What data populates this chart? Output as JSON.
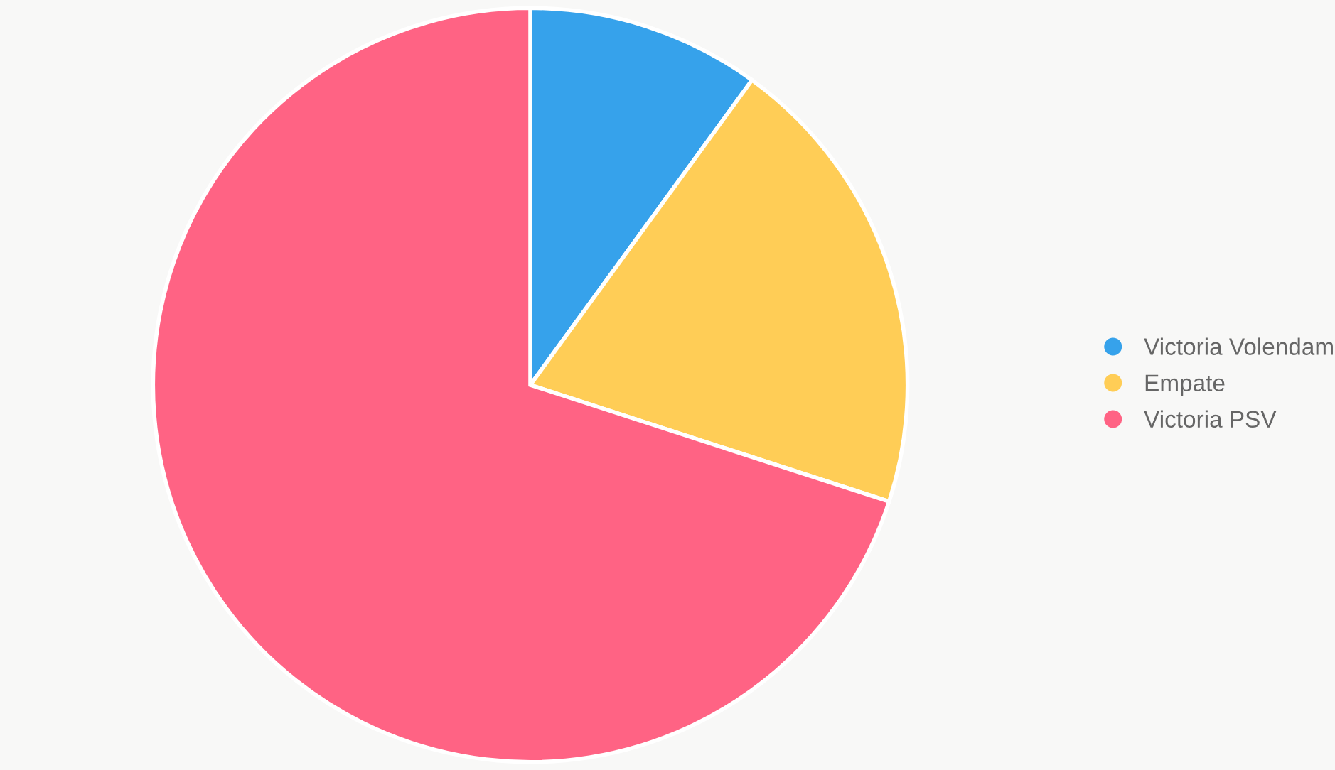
{
  "chart_data": {
    "type": "pie",
    "categories": [
      "Victoria Volendam",
      "Empate",
      "Victoria PSV"
    ],
    "values": [
      10,
      20,
      70
    ],
    "colors": [
      "#36a2eb",
      "#ffcd56",
      "#ff6384"
    ],
    "legend": "right"
  }
}
